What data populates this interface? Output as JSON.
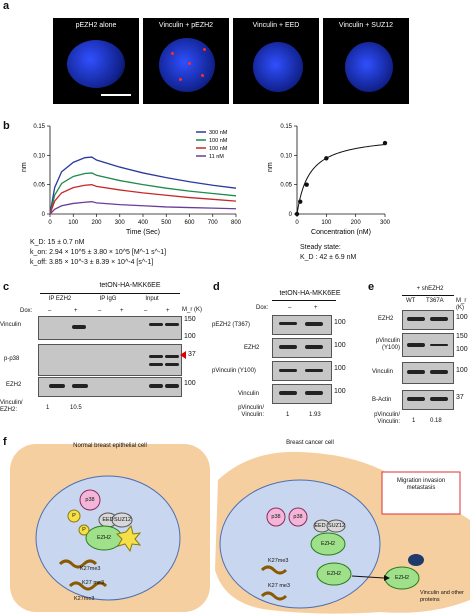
{
  "panel_a": {
    "label": "a",
    "titles": [
      "pEZH2 alone",
      "Vinculin + pEZH2",
      "Vinculin + EED",
      "Vinculin + SUZ12"
    ]
  },
  "panel_b": {
    "label": "b",
    "left_chart": {
      "legend": [
        "300 nM",
        "100 nM",
        "100 nM",
        "11 nM"
      ],
      "colors": [
        "#2a3a9a",
        "#1f8a4c",
        "#c62828",
        "#6a3d9a"
      ],
      "x_label": "Time (Sec)",
      "y_label": "nm",
      "x_ticks": [
        "0",
        "100",
        "200",
        "300",
        "400",
        "500",
        "600",
        "700",
        "800"
      ],
      "y_ticks": [
        "0",
        "0.05",
        "0.10",
        "0.15"
      ],
      "kd": "K_D: 15 ± 0.7 nM",
      "kon": "k_on: 2.94 × 10^5 ± 3.80 × 10^5 [M^-1 s^-1]",
      "koff": "k_off: 3.85 × 10^-3 ± 8.39 × 10^-4 [s^-1]"
    },
    "right_chart": {
      "x_label": "Concentration (nM)",
      "y_label": "nm",
      "x_ticks": [
        "0",
        "100",
        "200",
        "300"
      ],
      "y_ticks": [
        "0",
        "0.05",
        "0.10",
        "0.15"
      ],
      "steady": "Steady state:",
      "kd": "K_D : 42 ± 6.9 nM"
    }
  },
  "chart_data": [
    {
      "type": "line",
      "xlabel": "Time (Sec)",
      "ylabel": "nm",
      "xlim": [
        0,
        800
      ],
      "ylim": [
        0,
        0.15
      ],
      "x": [
        0,
        20,
        50,
        100,
        150,
        180,
        200,
        300,
        400,
        500,
        600,
        700,
        800
      ],
      "series": [
        {
          "name": "300 nM",
          "values": [
            0,
            0.045,
            0.072,
            0.088,
            0.096,
            0.097,
            0.092,
            0.08,
            0.07,
            0.062,
            0.055,
            0.049,
            0.044
          ]
        },
        {
          "name": "100 nM",
          "values": [
            0,
            0.032,
            0.052,
            0.064,
            0.069,
            0.07,
            0.066,
            0.057,
            0.05,
            0.044,
            0.039,
            0.035,
            0.031
          ]
        },
        {
          "name": "100 nM",
          "values": [
            0,
            0.022,
            0.036,
            0.045,
            0.049,
            0.05,
            0.047,
            0.041,
            0.036,
            0.032,
            0.028,
            0.025,
            0.022
          ]
        },
        {
          "name": "11 nM",
          "values": [
            0,
            0.008,
            0.014,
            0.018,
            0.02,
            0.021,
            0.019,
            0.016,
            0.014,
            0.012,
            0.011,
            0.01,
            0.009
          ]
        }
      ]
    },
    {
      "type": "scatter",
      "xlabel": "Concentration (nM)",
      "ylabel": "nm",
      "xlim": [
        0,
        300
      ],
      "ylim": [
        0,
        0.15
      ],
      "points": [
        [
          0,
          0
        ],
        [
          11,
          0.021
        ],
        [
          33,
          0.05
        ],
        [
          100,
          0.095
        ],
        [
          300,
          0.121
        ]
      ]
    }
  ],
  "panel_c": {
    "label": "c",
    "header": "tetON-HA-MKK6EE",
    "groups": [
      "IP EZH2",
      "IP IgG",
      "Input"
    ],
    "dox": "Dox:",
    "signs": [
      "–",
      "+",
      "–",
      "+",
      "–",
      "+"
    ],
    "mr": "M_r (K)",
    "rows": [
      "Vinculin",
      "p-p38",
      "EZH2"
    ],
    "markers": [
      "150",
      "100",
      "37",
      "100"
    ],
    "ratio_label": "Vinculin/ EZH2:",
    "ratios": [
      "1",
      "10.5"
    ]
  },
  "panel_d": {
    "label": "d",
    "header": "tetON-HA-MKK6EE",
    "dox": "Dox:",
    "signs": [
      "–",
      "+"
    ],
    "rows": [
      "pEZH2 (T367)",
      "EZH2",
      "pVinculin (Y100)",
      "Vinculin"
    ],
    "markers": [
      "100",
      "100",
      "100",
      "100"
    ],
    "ratio_label": "pVinculin/ Vinculin:",
    "ratios": [
      "1",
      "1.93"
    ]
  },
  "panel_e": {
    "label": "e",
    "header": "+ shEZH2",
    "cols": [
      "WT",
      "T367A"
    ],
    "mr": "M_r (K)",
    "rows": [
      "EZH2",
      "pVinculin (Y100)",
      "Vinculin",
      "B-Actin"
    ],
    "markers": [
      "100",
      "150",
      "100",
      "100",
      "37"
    ],
    "ratio_label": "pVinculin/ Vinculin:",
    "ratios": [
      "1",
      "0.18"
    ]
  },
  "panel_f": {
    "label": "f",
    "normal_title": "Normal breast epithelial cell",
    "cancer_title": "Breast cancer cell",
    "box": "Migration invasion metastasis",
    "p38": "p38",
    "p": "P",
    "eed": "EED",
    "suz12": "SUZ12",
    "ezh2": "EZH2",
    "k27": "K27me3",
    "k27b": "K27 me3",
    "vinculin_text": "Vinculin and other proteins"
  }
}
